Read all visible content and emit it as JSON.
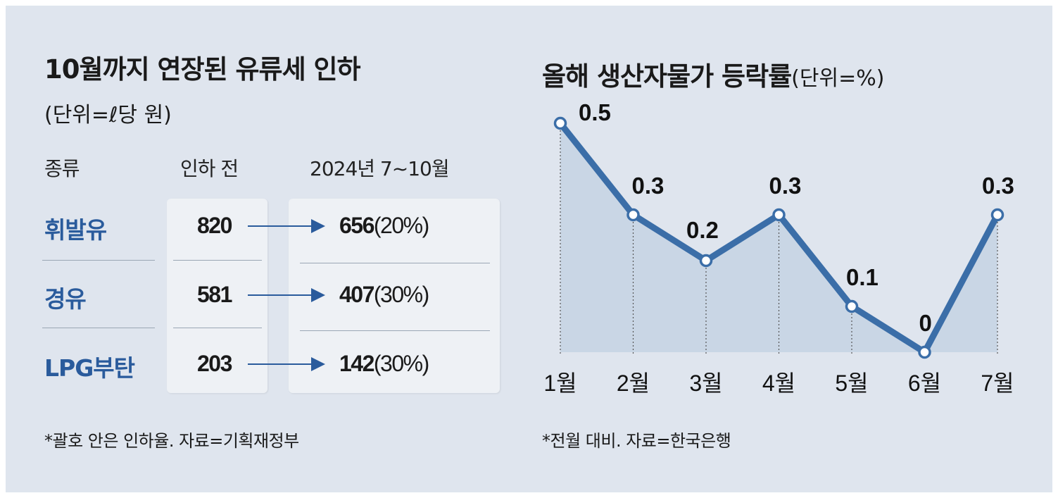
{
  "left": {
    "title": "10월까지 연장된 유류세 인하",
    "unit": "(단위=ℓ당 원)",
    "headers": {
      "type": "종류",
      "before": "인하 전",
      "after": "2024년 7~10월"
    },
    "rows": [
      {
        "fuel": "휘발유",
        "before": "820",
        "after": "656",
        "rate": "(20%)"
      },
      {
        "fuel": "경유",
        "before": "581",
        "after": "407",
        "rate": "(30%)"
      },
      {
        "fuel": "LPG부탄",
        "before": "203",
        "after": "142",
        "rate": "(30%)"
      }
    ],
    "note": "*괄호 안은 인하율. 자료=기획재정부"
  },
  "right": {
    "title": "올해 생산자물가 등락률",
    "unit": "(단위=%)",
    "note": "*전월 대비. 자료=한국은행"
  },
  "colors": {
    "background": "#dfe5ee",
    "accent": "#2a5b9c",
    "line": "#3b6ea8",
    "area": "#c6d3e3"
  },
  "chart_data": {
    "type": "line",
    "title": "올해 생산자물가 등락률",
    "ylabel": "(단위=%)",
    "categories": [
      "1월",
      "2월",
      "3월",
      "4월",
      "5월",
      "6월",
      "7월"
    ],
    "values": [
      0.5,
      0.3,
      0.2,
      0.3,
      0.1,
      0,
      0.3
    ],
    "labels": [
      "0.5",
      "0.3",
      "0.2",
      "0.3",
      "0.1",
      "0",
      "0.3"
    ],
    "ylim": [
      0,
      0.5
    ],
    "area_fill": true,
    "grid": false
  }
}
